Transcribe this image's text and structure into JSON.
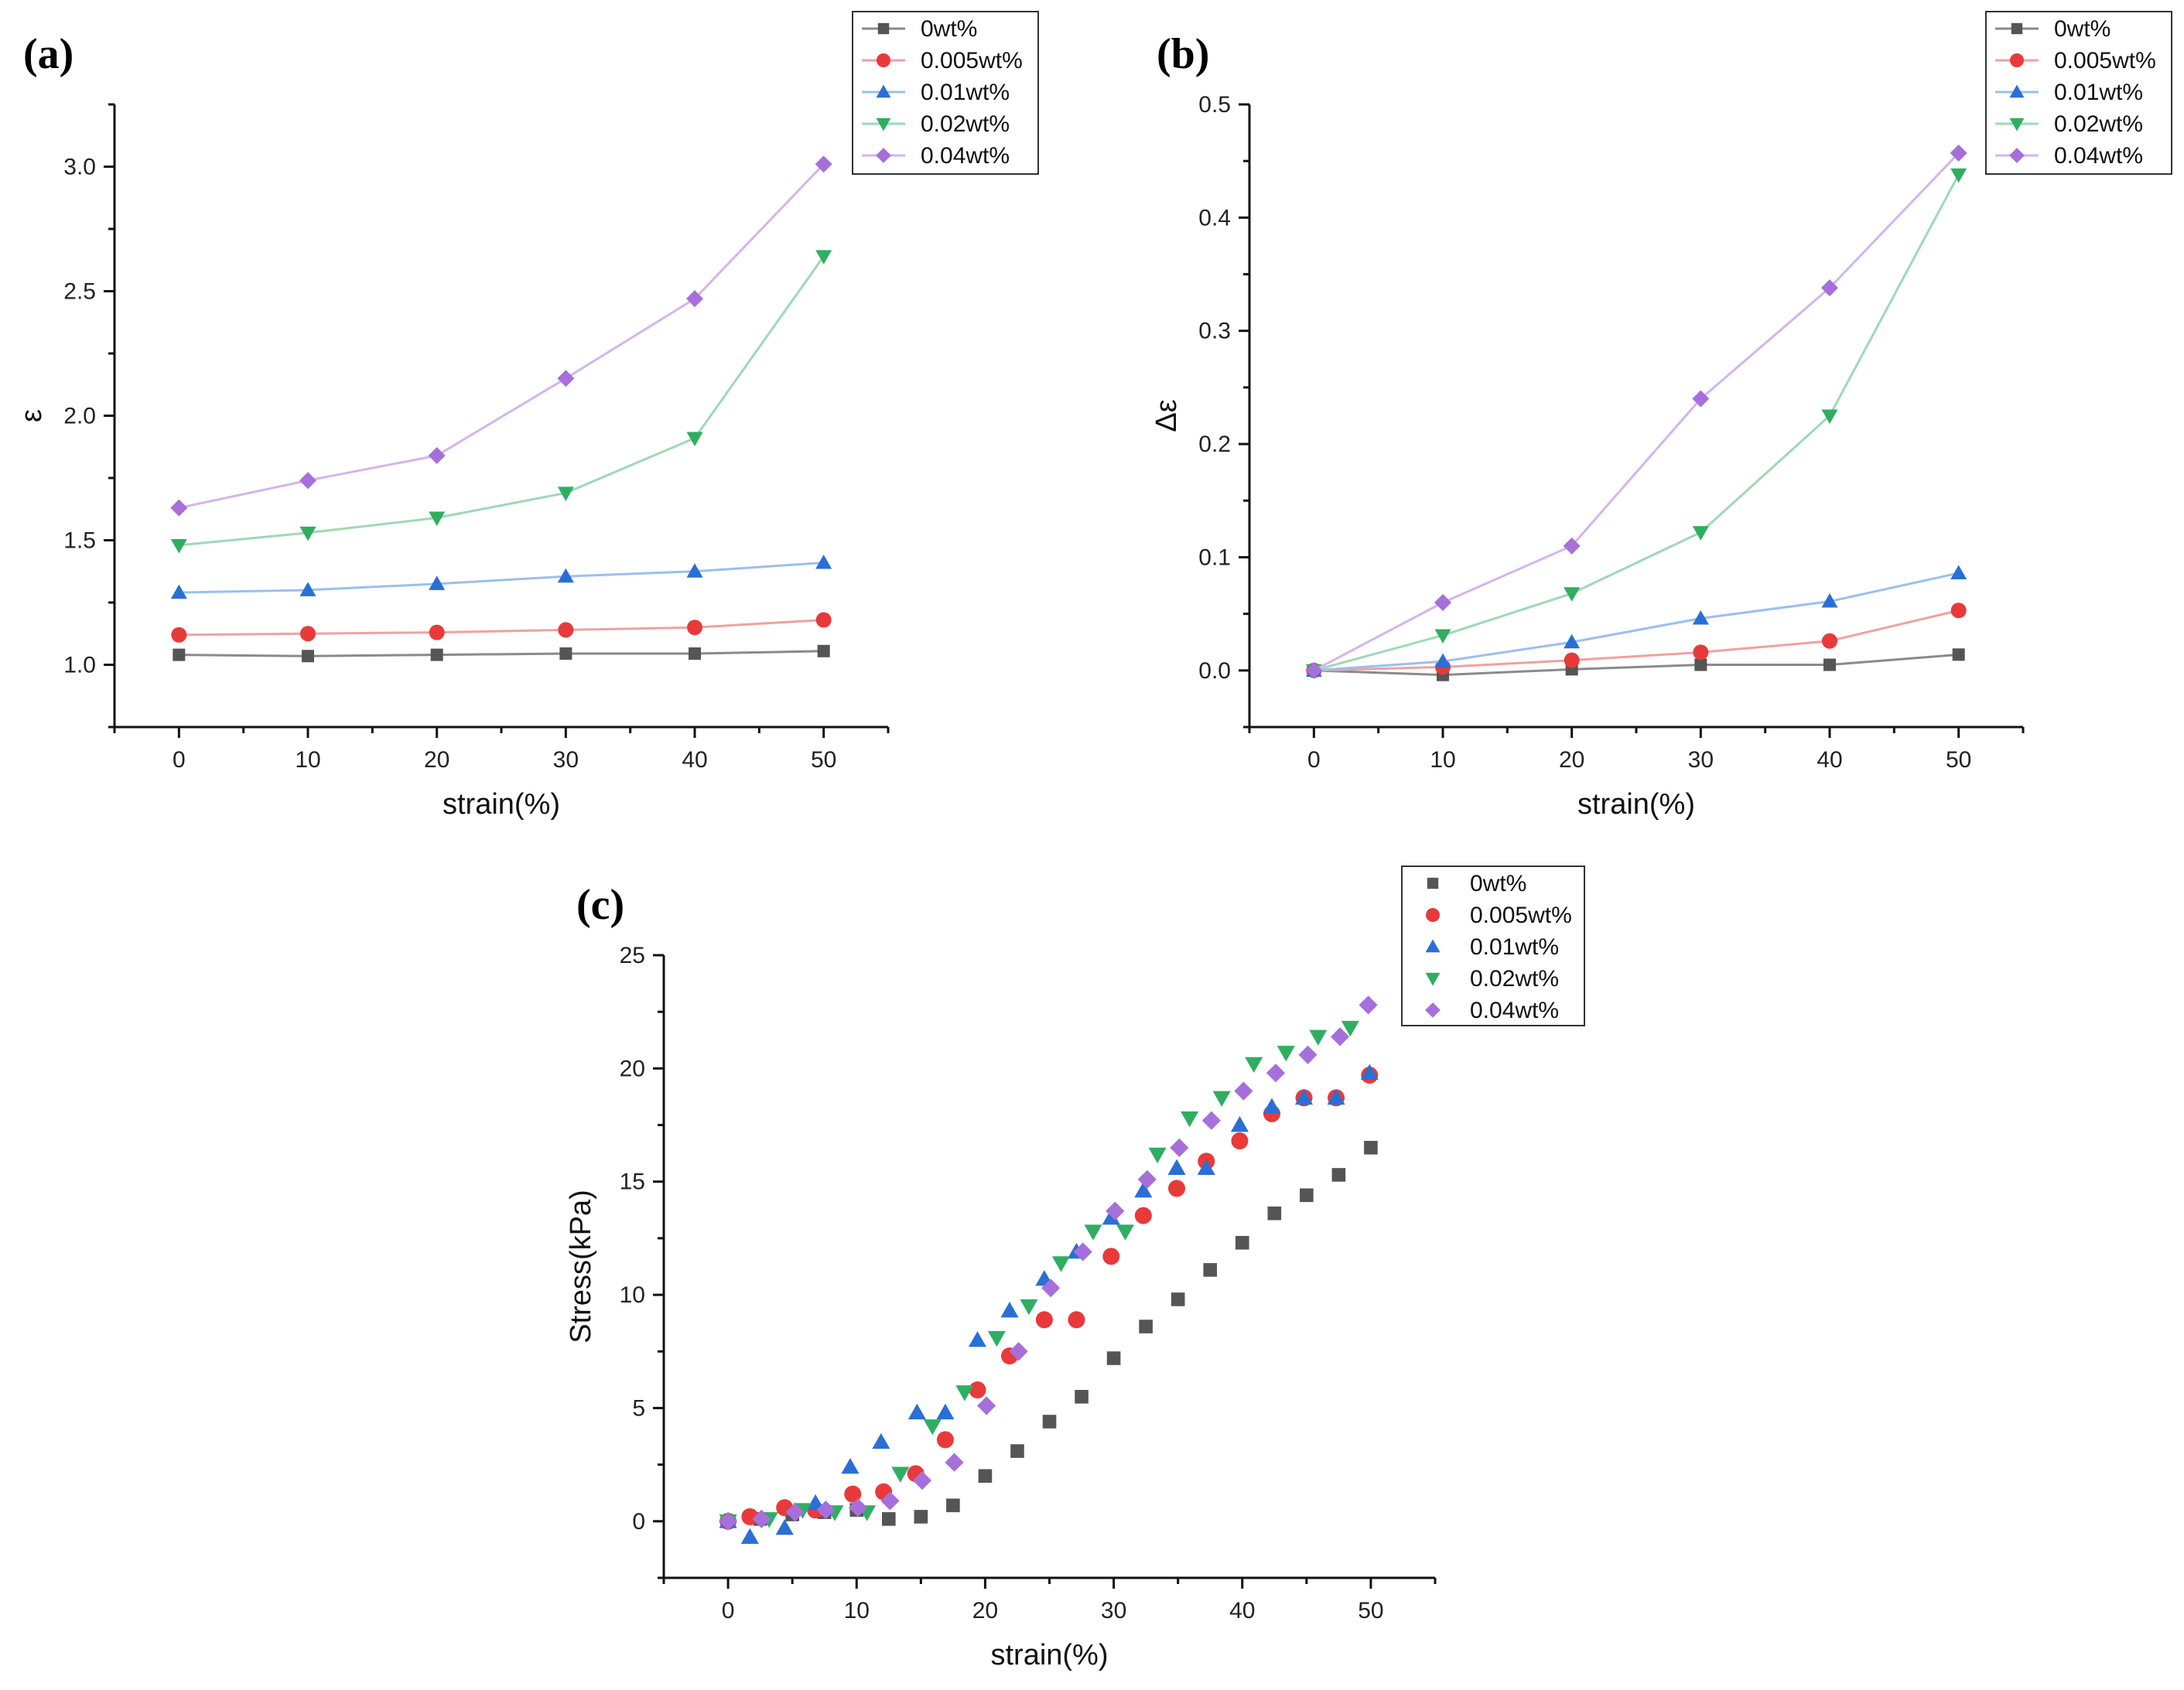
{
  "series_meta": [
    {
      "key": "s0",
      "name": "0wt%",
      "color": "#555555",
      "line_color": "#8a8a8a",
      "marker": "square"
    },
    {
      "key": "s1",
      "name": "0.005wt%",
      "color": "#e83a3a",
      "line_color": "#f2a0a0",
      "marker": "circle"
    },
    {
      "key": "s2",
      "name": "0.01wt%",
      "color": "#2a6fd6",
      "line_color": "#9bbff0",
      "marker": "triangle-up"
    },
    {
      "key": "s3",
      "name": "0.02wt%",
      "color": "#2fae62",
      "line_color": "#9ed9b5",
      "marker": "triangle-down"
    },
    {
      "key": "s4",
      "name": "0.04wt%",
      "color": "#a66fdb",
      "line_color": "#d2b5ee",
      "marker": "diamond"
    }
  ],
  "chart_data": [
    {
      "id": "a",
      "panel_label": "(a)",
      "type": "line",
      "xlabel": "strain(%)",
      "ylabel": "ε",
      "xlim": [
        -5,
        55
      ],
      "ylim": [
        0.75,
        3.25
      ],
      "xticks": [
        "0",
        "10",
        "20",
        "30",
        "40",
        "50"
      ],
      "xtick_values": [
        0,
        10,
        20,
        30,
        40,
        50
      ],
      "yticks": [
        "1.0",
        "1.5",
        "2.0",
        "2.5",
        "3.0"
      ],
      "ytick_values": [
        1.0,
        1.5,
        2.0,
        2.5,
        3.0
      ],
      "legend_position": "top-right",
      "connected": true,
      "x": [
        0,
        10,
        20,
        30,
        40,
        50
      ],
      "series": [
        {
          "name": "0wt%",
          "values": [
            1.04,
            1.035,
            1.04,
            1.045,
            1.045,
            1.055
          ]
        },
        {
          "name": "0.005wt%",
          "values": [
            1.12,
            1.125,
            1.13,
            1.14,
            1.15,
            1.18
          ]
        },
        {
          "name": "0.01wt%",
          "values": [
            1.29,
            1.3,
            1.325,
            1.355,
            1.375,
            1.41
          ]
        },
        {
          "name": "0.02wt%",
          "values": [
            1.48,
            1.53,
            1.59,
            1.69,
            1.91,
            2.64
          ]
        },
        {
          "name": "0.04wt%",
          "values": [
            1.63,
            1.74,
            1.84,
            2.15,
            2.47,
            3.01
          ]
        }
      ]
    },
    {
      "id": "b",
      "panel_label": "(b)",
      "type": "line",
      "xlabel": "strain(%)",
      "ylabel": "Δε",
      "xlim": [
        -5,
        55
      ],
      "ylim": [
        -0.05,
        0.5
      ],
      "xticks": [
        "0",
        "10",
        "20",
        "30",
        "40",
        "50"
      ],
      "xtick_values": [
        0,
        10,
        20,
        30,
        40,
        50
      ],
      "yticks": [
        "0.0",
        "0.1",
        "0.2",
        "0.3",
        "0.4",
        "0.5"
      ],
      "ytick_values": [
        0.0,
        0.1,
        0.2,
        0.3,
        0.4,
        0.5
      ],
      "legend_position": "top-right",
      "connected": true,
      "x": [
        0,
        10,
        20,
        30,
        40,
        50
      ],
      "series": [
        {
          "name": "0wt%",
          "values": [
            0.0,
            -0.004,
            0.001,
            0.005,
            0.005,
            0.014
          ]
        },
        {
          "name": "0.005wt%",
          "values": [
            0.0,
            0.003,
            0.009,
            0.016,
            0.026,
            0.053
          ]
        },
        {
          "name": "0.01wt%",
          "values": [
            0.0,
            0.008,
            0.025,
            0.046,
            0.061,
            0.086
          ]
        },
        {
          "name": "0.02wt%",
          "values": [
            0.0,
            0.031,
            0.068,
            0.122,
            0.225,
            0.438
          ]
        },
        {
          "name": "0.04wt%",
          "values": [
            0.0,
            0.06,
            0.11,
            0.24,
            0.338,
            0.457
          ]
        }
      ]
    },
    {
      "id": "c",
      "panel_label": "(c)",
      "type": "scatter",
      "xlabel": "strain(%)",
      "ylabel": "Stress(kPa)",
      "xlim": [
        -5,
        55
      ],
      "ylim": [
        -2.5,
        25
      ],
      "xticks": [
        "0",
        "10",
        "20",
        "30",
        "40",
        "50"
      ],
      "xtick_values": [
        0,
        10,
        20,
        30,
        40,
        50
      ],
      "yticks": [
        "0",
        "5",
        "10",
        "15",
        "20",
        "25"
      ],
      "ytick_values": [
        0,
        5,
        10,
        15,
        20,
        25
      ],
      "legend_position": "top-right",
      "connected": false,
      "series": [
        {
          "name": "0wt%",
          "x": [
            0,
            2.5,
            5,
            7.5,
            10,
            12.5,
            15,
            17.5,
            20,
            22.5,
            25,
            27.5,
            30,
            32.5,
            35,
            37.5,
            40,
            42.5,
            45,
            47.5,
            50
          ],
          "y": [
            0,
            0.1,
            0.3,
            0.4,
            0.5,
            0.1,
            0.2,
            0.7,
            2.0,
            3.1,
            4.4,
            5.5,
            7.2,
            8.6,
            9.8,
            11.1,
            12.3,
            13.6,
            14.4,
            15.3,
            16.5
          ]
        },
        {
          "name": "0.005wt%",
          "x": [
            0,
            1.7,
            4.4,
            6.8,
            9.7,
            12.1,
            14.6,
            16.9,
            19.4,
            21.9,
            24.6,
            27.1,
            29.8,
            32.3,
            34.9,
            37.2,
            39.8,
            42.3,
            44.8,
            47.3,
            49.9
          ],
          "y": [
            0,
            0.2,
            0.6,
            0.5,
            1.2,
            1.3,
            2.1,
            3.6,
            5.8,
            7.3,
            8.9,
            8.9,
            11.7,
            13.5,
            14.7,
            15.9,
            16.8,
            18.0,
            18.7,
            18.7,
            19.7
          ]
        },
        {
          "name": "0.01wt%",
          "x": [
            0,
            1.7,
            4.4,
            6.8,
            9.5,
            11.9,
            14.7,
            16.9,
            19.4,
            21.9,
            24.6,
            27.1,
            29.8,
            32.3,
            34.9,
            37.2,
            39.8,
            42.3,
            44.8,
            47.3,
            49.9
          ],
          "y": [
            0,
            -0.7,
            -0.3,
            0.8,
            2.4,
            3.5,
            4.8,
            4.8,
            8.0,
            9.3,
            10.7,
            11.9,
            13.4,
            14.6,
            15.6,
            15.6,
            17.5,
            18.3,
            18.7,
            18.7,
            19.8
          ]
        },
        {
          "name": "0.02wt%",
          "x": [
            0,
            3.2,
            5.8,
            8.3,
            10.8,
            13.4,
            15.9,
            18.4,
            20.9,
            23.4,
            25.9,
            28.4,
            30.9,
            33.4,
            35.9,
            38.4,
            40.9,
            43.4,
            45.9,
            48.4
          ],
          "y": [
            0,
            0.1,
            0.5,
            0.4,
            0.4,
            2.1,
            4.2,
            5.7,
            8.1,
            9.5,
            11.4,
            12.8,
            12.8,
            16.2,
            17.8,
            18.7,
            20.2,
            20.7,
            21.4,
            21.8
          ]
        },
        {
          "name": "0.04wt%",
          "x": [
            0,
            2.6,
            5.2,
            7.6,
            10.1,
            12.6,
            15.1,
            17.6,
            20.1,
            22.6,
            25.1,
            27.6,
            30.1,
            32.6,
            35.1,
            37.6,
            40.1,
            42.6,
            45.1,
            47.6,
            49.8
          ],
          "y": [
            0,
            0.1,
            0.4,
            0.5,
            0.6,
            0.9,
            1.8,
            2.6,
            5.1,
            7.5,
            10.3,
            11.9,
            13.7,
            15.1,
            16.5,
            17.7,
            19.0,
            19.8,
            20.6,
            21.4,
            22.8
          ]
        }
      ]
    }
  ]
}
